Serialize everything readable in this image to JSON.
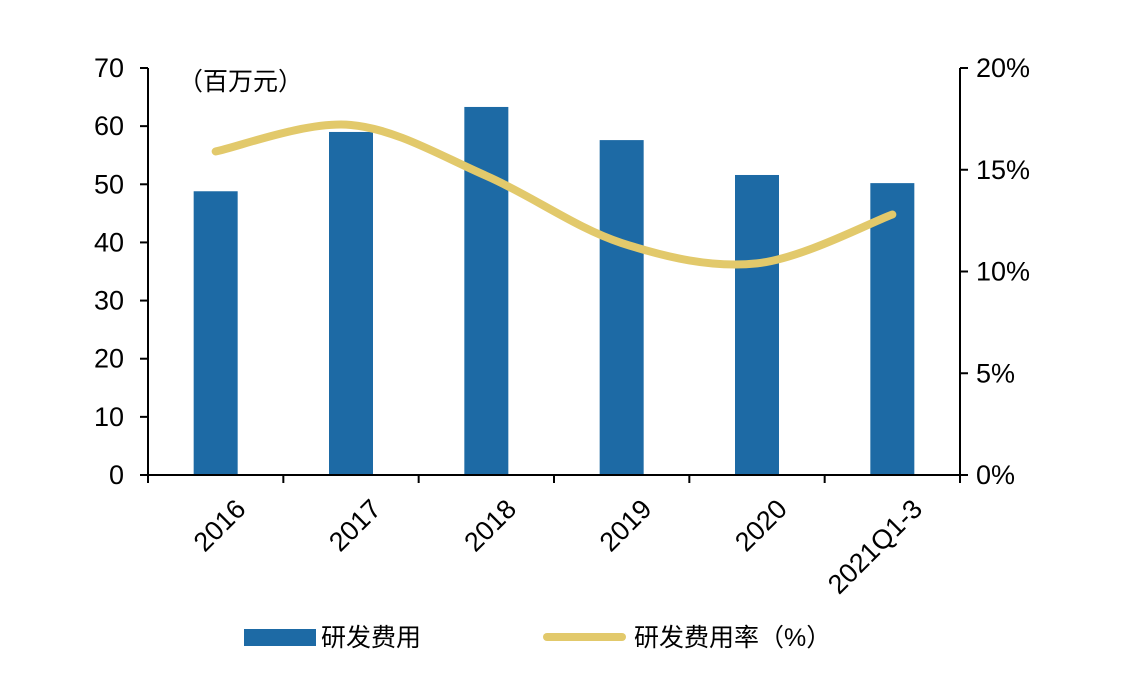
{
  "colors": {
    "bar": "#1d6aa5",
    "line": "#e2c96b",
    "axis": "#000000",
    "text": "#000000"
  },
  "chart_data": {
    "type": "bar",
    "categories": [
      "2016",
      "2017",
      "2018",
      "2019",
      "2020",
      "2021Q1-3"
    ],
    "y_unit_label": "（百万元）",
    "ylim": [
      0,
      70
    ],
    "yticks": [
      0,
      10,
      20,
      30,
      40,
      50,
      60,
      70
    ],
    "y2lim": [
      0,
      20
    ],
    "y2ticks": [
      "0%",
      "5%",
      "10%",
      "15%",
      "20%"
    ],
    "series": [
      {
        "name": "研发费用",
        "type": "bar",
        "axis": "left",
        "values": [
          48.8,
          59.0,
          63.3,
          57.6,
          51.6,
          50.2
        ]
      },
      {
        "name": "研发费用率（%）",
        "type": "line",
        "axis": "right",
        "values": [
          15.9,
          17.2,
          14.7,
          11.4,
          10.4,
          12.8
        ]
      }
    ],
    "grid": false,
    "legend": "bottom"
  }
}
